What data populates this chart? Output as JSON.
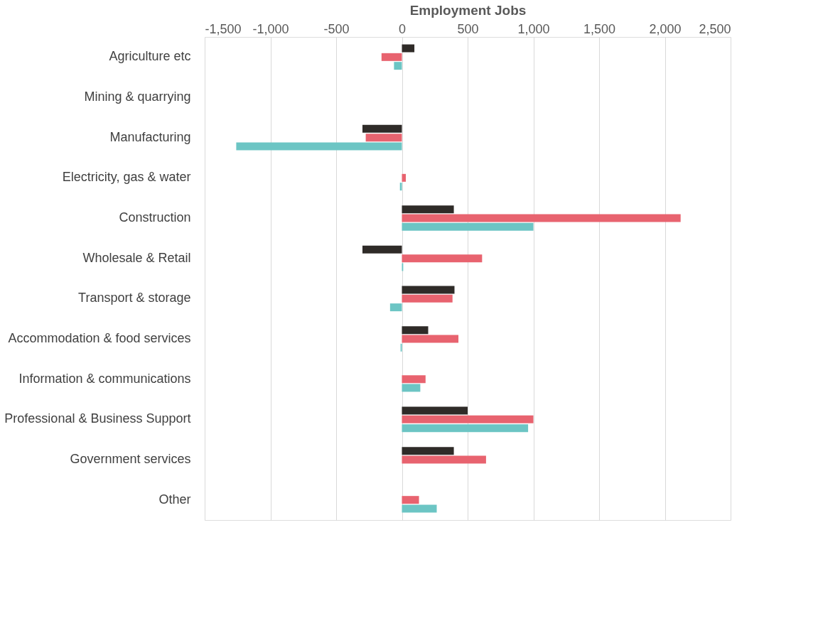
{
  "chart_data": {
    "type": "bar",
    "orientation": "horizontal",
    "xlabel": "Employment Jobs",
    "categories": [
      "Agriculture etc",
      "Mining & quarrying",
      "Manufacturing",
      "Electricity, gas & water",
      "Construction",
      "Wholesale & Retail",
      "Transport & storage",
      "Accommodation & food services",
      "Information & communications",
      "Professional & Business Support",
      "Government services",
      "Other"
    ],
    "series": [
      {
        "color": "#2f2b28",
        "values": [
          95,
          null,
          -300,
          null,
          395,
          -300,
          400,
          200,
          null,
          500,
          395,
          null
        ]
      },
      {
        "color": "#e8636f",
        "values": [
          -155,
          null,
          -275,
          30,
          2120,
          610,
          385,
          430,
          180,
          1000,
          640,
          130
        ]
      },
      {
        "color": "#6cc5c4",
        "values": [
          -60,
          null,
          -1260,
          -15,
          1000,
          10,
          -90,
          -10,
          140,
          960,
          null,
          265
        ]
      }
    ],
    "xlim": [
      -1500,
      2500
    ],
    "xticks": [
      {
        "value": -1500,
        "label": "-1,500"
      },
      {
        "value": -1000,
        "label": "-1,000"
      },
      -500,
      0,
      500,
      {
        "value": 1000,
        "label": "1,000"
      },
      {
        "value": 1500,
        "label": "1,500"
      },
      {
        "value": 2000,
        "label": "2,000"
      },
      {
        "value": 2500,
        "label": "2,500"
      }
    ],
    "grid": "x",
    "legend": false
  }
}
